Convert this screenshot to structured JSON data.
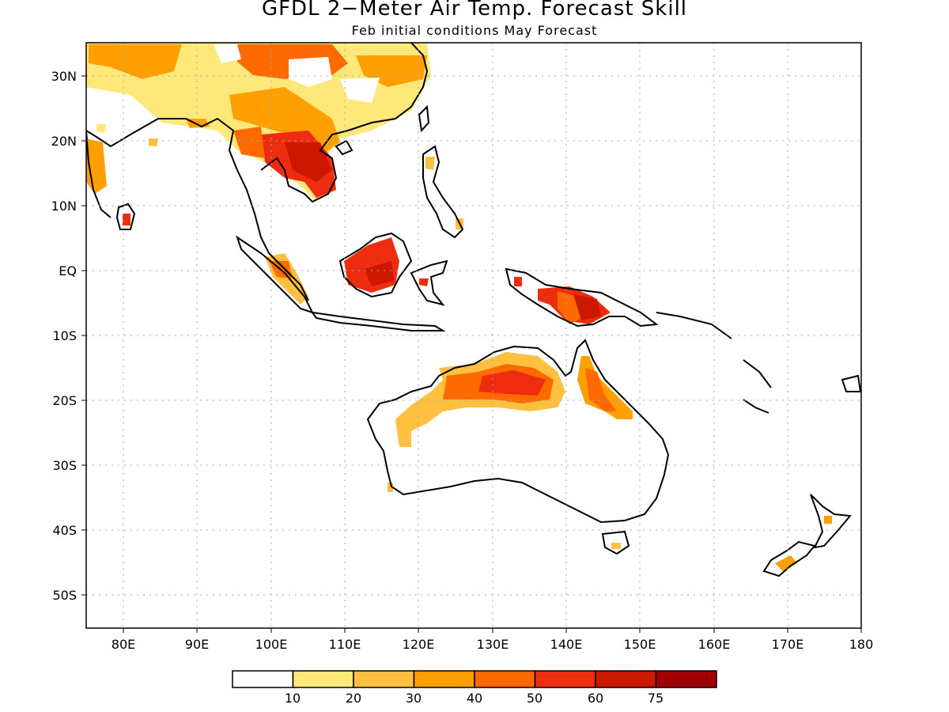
{
  "title": "GFDL 2−Meter Air Temp. Forecast Skill",
  "subtitle": "Feb initial conditions  May Forecast",
  "map": {
    "lon_range": [
      75,
      180
    ],
    "lat_range": [
      -55,
      35
    ],
    "lat_labels": [
      "30N",
      "20N",
      "10N",
      "EQ",
      "10S",
      "20S",
      "30S",
      "40S",
      "50S"
    ],
    "lon_labels": [
      "80E",
      "90E",
      "100E",
      "110E",
      "120E",
      "130E",
      "140E",
      "150E",
      "160E",
      "170E",
      "180"
    ],
    "gridlines": "dotted"
  },
  "colorbar": {
    "colors": [
      "#ffffff",
      "#ffe87a",
      "#ffc040",
      "#ffa000",
      "#ff6a00",
      "#ee2c10",
      "#cc1800",
      "#a00000"
    ],
    "labels": [
      "10",
      "20",
      "30",
      "40",
      "50",
      "60",
      "75"
    ]
  }
}
